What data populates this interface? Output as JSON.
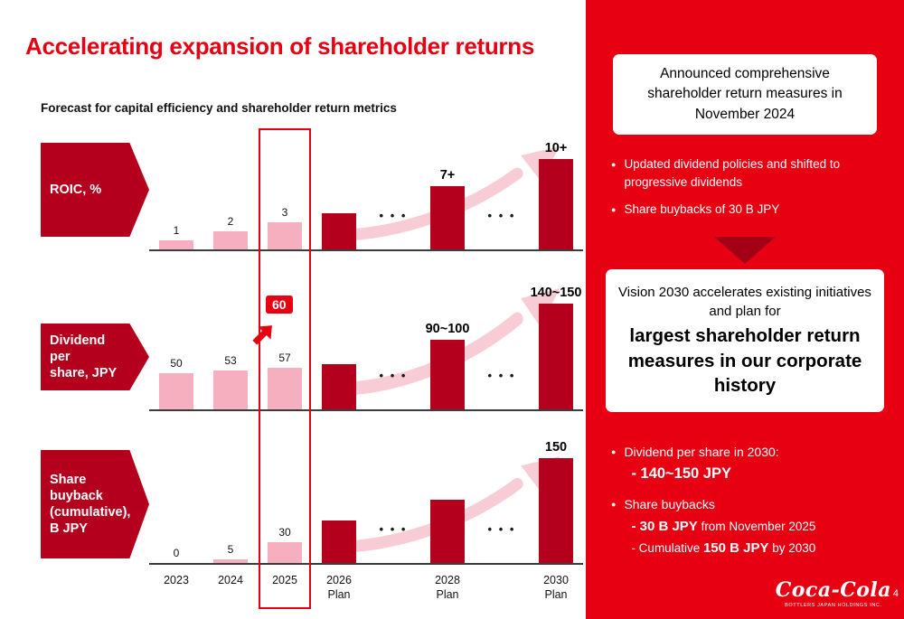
{
  "slide": {
    "title": "Accelerating expansion of shareholder returns",
    "subtitle": "Forecast for capital efficiency and shareholder return metrics",
    "page_number": "4"
  },
  "colors": {
    "accent_red": "#e60012",
    "dark_bar": "#b5001d",
    "pink_bar": "#f5afbf",
    "pink_arrow": "#f7c3ce",
    "panel_red": "#e60012",
    "dark_arrow": "#a30015",
    "baseline": "#3c3c3c"
  },
  "charts_common": {
    "dots_glyph": "• • •",
    "bullet_glyph": "●"
  },
  "chart_data": [
    {
      "type": "bar",
      "title": "ROIC, %",
      "label_lines": [
        "ROIC, %"
      ],
      "categories": [
        "2023",
        "2024",
        "2025",
        "2026 Plan",
        "2028 Plan",
        "2030 Plan"
      ],
      "values": [
        1,
        2,
        3,
        4,
        7,
        10
      ],
      "labels": [
        "1",
        "2",
        "3",
        "",
        "7+",
        "10+"
      ],
      "colors": [
        "pink",
        "pink",
        "pink",
        "dark",
        "dark",
        "dark"
      ],
      "ymax": 11,
      "annotation": null
    },
    {
      "type": "bar",
      "title": "Dividend per share, JPY",
      "label_lines": [
        "Dividend per",
        "share, JPY"
      ],
      "categories": [
        "2023",
        "2024",
        "2025",
        "2026 Plan",
        "2028 Plan",
        "2030 Plan"
      ],
      "values": [
        50,
        53,
        57,
        62,
        95,
        145
      ],
      "labels": [
        "50",
        "53",
        "57",
        "",
        "90~100",
        "140~150"
      ],
      "colors": [
        "pink",
        "pink",
        "pink",
        "dark",
        "dark",
        "dark"
      ],
      "ymax": 160,
      "annotation": {
        "text": "60",
        "target": "2025"
      }
    },
    {
      "type": "bar",
      "title": "Share buyback (cumulative), B JPY",
      "label_lines": [
        "Share",
        "buyback",
        "(cumulative),",
        "B JPY"
      ],
      "categories": [
        "2023",
        "2024",
        "2025",
        "2026 Plan",
        "2028 Plan",
        "2030 Plan"
      ],
      "values": [
        0,
        5,
        30,
        60,
        90,
        150
      ],
      "labels": [
        "0",
        "5",
        "30",
        "",
        "",
        "150"
      ],
      "colors": [
        "pink",
        "pink",
        "pink",
        "dark",
        "dark",
        "dark"
      ],
      "ymax": 160,
      "annotation": null
    }
  ],
  "panel": {
    "box1": "Announced comprehensive shareholder return measures in November 2024",
    "bullets1": [
      "Updated dividend policies and shifted to progressive dividends",
      "Share buybacks of 30 B JPY"
    ],
    "box2_intro": "Vision 2030 accelerates existing initiatives and plan for",
    "box2_emphasis": "largest shareholder return measures in our corporate history",
    "b2_item1_label": "Dividend per share in 2030:",
    "b2_item1_value": "- 140~150 JPY",
    "b2_item2_label": "Share buybacks",
    "b2_item2_line1_bold": "- 30 B JPY",
    "b2_item2_line1_rest": " from November 2025",
    "b2_item2_line2_pre": "- Cumulative ",
    "b2_item2_line2_bold": "150 B JPY",
    "b2_item2_line2_post": " by 2030"
  },
  "logo": {
    "brand": "Coca-Cola",
    "subtitle": "BOTTLERS JAPAN HOLDINGS INC."
  }
}
